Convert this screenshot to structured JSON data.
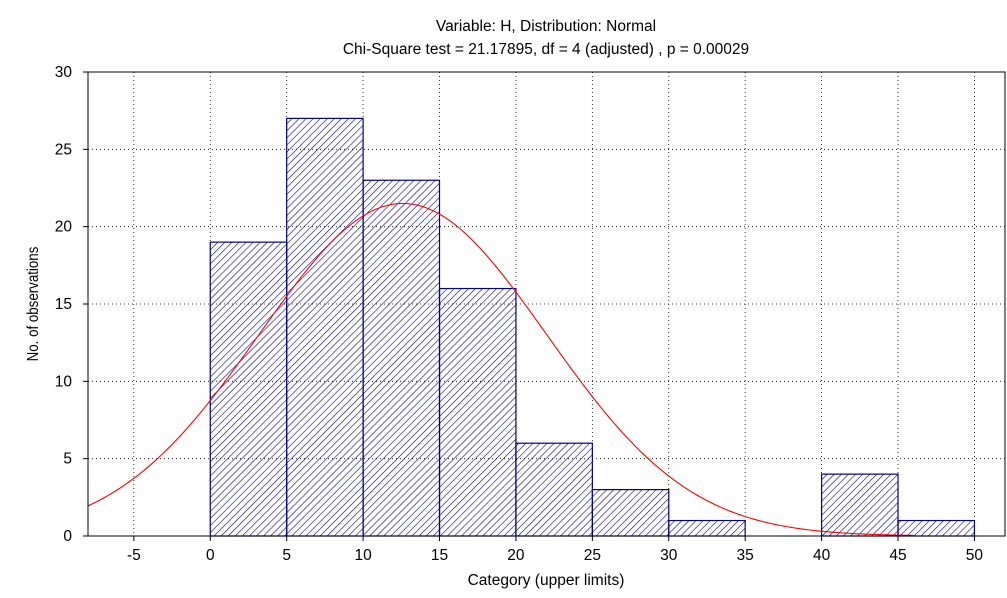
{
  "chart_data": {
    "type": "bar",
    "title": "Variable: H, Distribution: Normal",
    "subtitle": "Chi-Square test = 21.17895, df = 4 (adjusted) , p = 0.00029",
    "xlabel": "Category (upper limits)",
    "ylabel": "No. of observations",
    "xlim": [
      -8,
      52
    ],
    "ylim": [
      0,
      30
    ],
    "x_ticks": [
      -5,
      0,
      5,
      10,
      15,
      20,
      25,
      30,
      35,
      40,
      45,
      50
    ],
    "y_ticks": [
      0,
      5,
      10,
      15,
      20,
      25,
      30
    ],
    "grid": true,
    "bin_width": 5,
    "bins": [
      {
        "upper": 5,
        "value": 19
      },
      {
        "upper": 10,
        "value": 27
      },
      {
        "upper": 15,
        "value": 23
      },
      {
        "upper": 20,
        "value": 16
      },
      {
        "upper": 25,
        "value": 6
      },
      {
        "upper": 30,
        "value": 3
      },
      {
        "upper": 35,
        "value": 1
      },
      {
        "upper": 40,
        "value": 0
      },
      {
        "upper": 45,
        "value": 4
      },
      {
        "upper": 50,
        "value": 1
      }
    ],
    "normal_curve": {
      "mean": 12.6,
      "peak": 21.5,
      "sd": 9.4,
      "x_range": [
        -8,
        46
      ]
    },
    "colors": {
      "bar_fill_hatch": "#00008b",
      "bar_edge": "#00008b",
      "curve": "#ff0000",
      "grid": "#000000",
      "axis": "#000000"
    }
  }
}
